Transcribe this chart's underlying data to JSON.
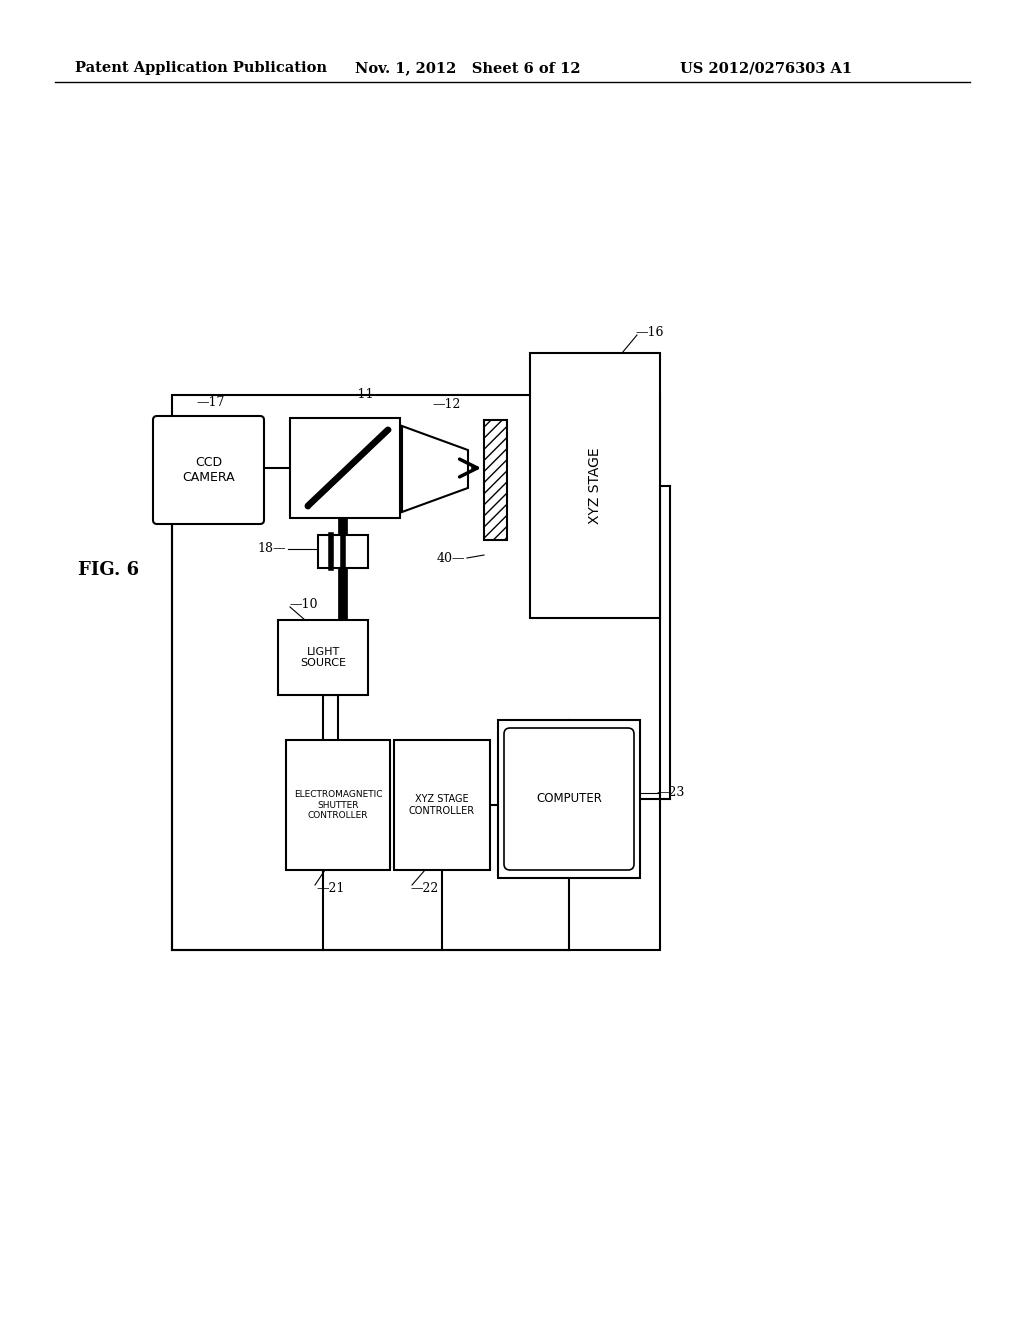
{
  "bg_color": "#ffffff",
  "header_left": "Patent Application Publication",
  "header_mid": "Nov. 1, 2012   Sheet 6 of 12",
  "header_right": "US 2012/0276303 A1",
  "fig_label": "FIG. 6"
}
